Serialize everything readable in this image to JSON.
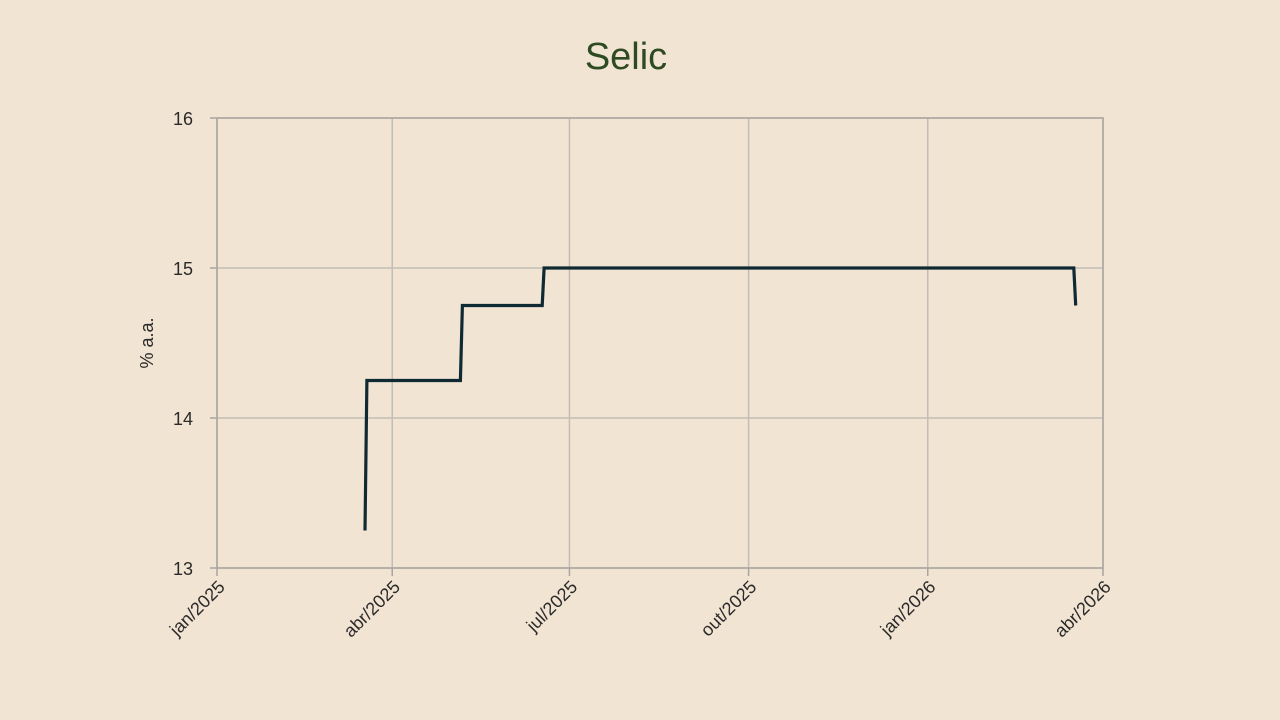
{
  "chart_data": {
    "type": "line",
    "title": "Selic",
    "xlabel": "",
    "ylabel": "% a.a.",
    "ylim": [
      13,
      16
    ],
    "yticks": [
      13,
      14,
      15,
      16
    ],
    "xlim": [
      "2025-01-01",
      "2026-04-01"
    ],
    "xticks": [
      {
        "date": "2025-01-01",
        "label": "jan/2025"
      },
      {
        "date": "2025-04-01",
        "label": "abr/2025"
      },
      {
        "date": "2025-07-01",
        "label": "jul/2025"
      },
      {
        "date": "2025-10-01",
        "label": "out/2025"
      },
      {
        "date": "2026-01-01",
        "label": "jan/2026"
      },
      {
        "date": "2026-04-01",
        "label": "abr/2026"
      }
    ],
    "grid": true,
    "line_color": "#0f2a33",
    "series": [
      {
        "x": [
          "2025-03-18",
          "2025-03-19",
          "2025-05-06",
          "2025-05-07",
          "2025-06-17",
          "2025-06-18",
          "2026-03-17",
          "2026-03-18"
        ],
        "y": [
          13.25,
          14.25,
          14.25,
          14.75,
          14.75,
          15.0,
          15.0,
          14.75
        ]
      }
    ]
  }
}
